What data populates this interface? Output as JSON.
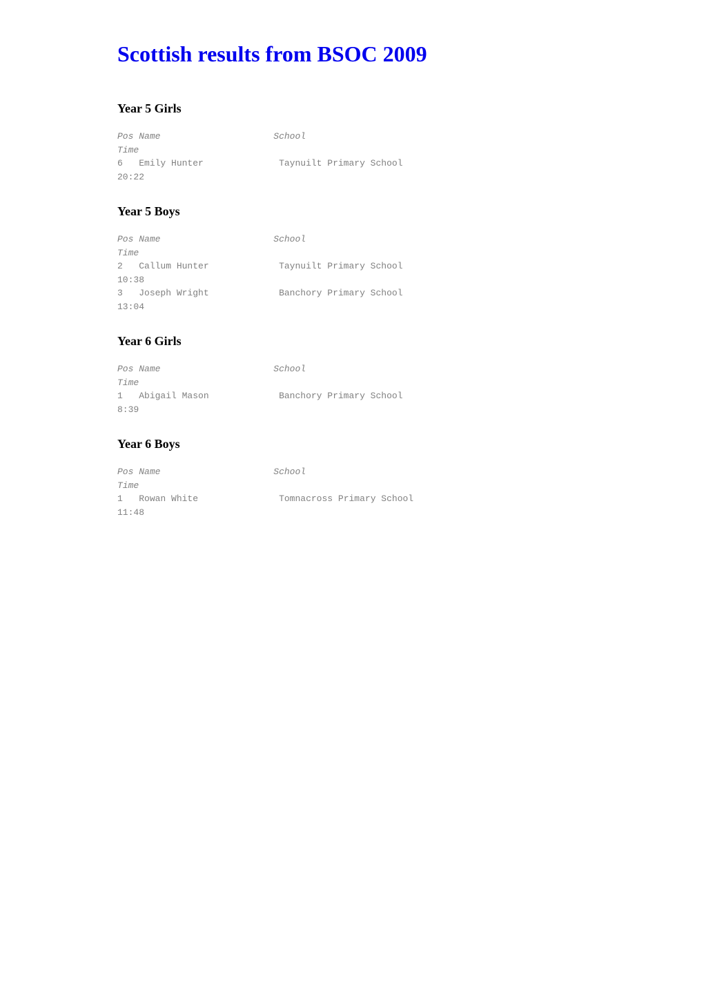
{
  "page_title": "Scottish results from BSOC 2009",
  "colors": {
    "title_color": "#0000ee",
    "heading_color": "#000000",
    "data_text_color": "#808080",
    "background_color": "#ffffff"
  },
  "typography": {
    "title_fontsize": 32,
    "heading_fontsize": 18,
    "data_fontsize": 13,
    "title_font": "serif",
    "data_font": "monospace"
  },
  "sections": [
    {
      "heading": "Year 5 Girls",
      "columns": {
        "pos": "Pos",
        "name": "Name",
        "school": "School",
        "time": "Time"
      },
      "rows": [
        {
          "pos": "6",
          "name": "Emily Hunter",
          "school": "Taynuilt Primary School",
          "time": "20:22"
        }
      ]
    },
    {
      "heading": "Year 5 Boys",
      "columns": {
        "pos": "Pos",
        "name": "Name",
        "school": "School",
        "time": "Time"
      },
      "rows": [
        {
          "pos": "2",
          "name": "Callum Hunter",
          "school": "Taynuilt Primary School",
          "time": "10:38"
        },
        {
          "pos": "3",
          "name": "Joseph Wright",
          "school": "Banchory Primary School",
          "time": "13:04"
        }
      ]
    },
    {
      "heading": "Year 6 Girls",
      "columns": {
        "pos": "Pos",
        "name": "Name",
        "school": "School",
        "time": "Time"
      },
      "rows": [
        {
          "pos": "1",
          "name": "Abigail Mason",
          "school": "Banchory Primary School",
          "time": "8:39"
        }
      ]
    },
    {
      "heading": "Year 6 Boys",
      "columns": {
        "pos": "Pos",
        "name": "Name",
        "school": "School",
        "time": "Time"
      },
      "rows": [
        {
          "pos": "1",
          "name": "Rowan White",
          "school": "Tomnacross Primary School",
          "time": "11:48"
        }
      ]
    }
  ]
}
